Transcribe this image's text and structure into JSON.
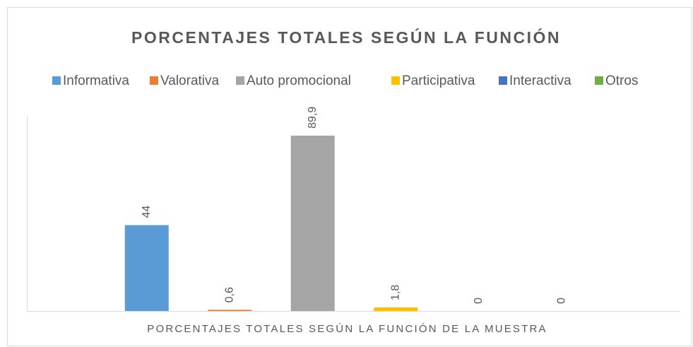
{
  "chart_data": {
    "type": "bar",
    "title": "PORCENTAJES TOTALES SEGÚN LA FUNCIÓN",
    "categories": [
      "PORCENTAJES TOTALES SEGÚN LA FUNCIÓN DE LA MUESTRA"
    ],
    "series": [
      {
        "name": "Informativa",
        "color": "#5b9bd5",
        "values": [
          44
        ]
      },
      {
        "name": "Valorativa",
        "color": "#ed7d31",
        "values": [
          0.6
        ],
        "value_labels": [
          "0,6"
        ]
      },
      {
        "name": "Auto promocional",
        "color": "#a5a5a5",
        "values": [
          89.9
        ],
        "value_labels": [
          "89,9"
        ]
      },
      {
        "name": "Participativa",
        "color": "#ffc000",
        "values": [
          1.8
        ],
        "value_labels": [
          "1,8"
        ]
      },
      {
        "name": "Interactiva",
        "color": "#4472c4",
        "values": [
          0
        ]
      },
      {
        "name": "Otros",
        "color": "#70ad47",
        "values": [
          0
        ]
      }
    ],
    "ylim": [
      0,
      100
    ],
    "legend": "top"
  }
}
